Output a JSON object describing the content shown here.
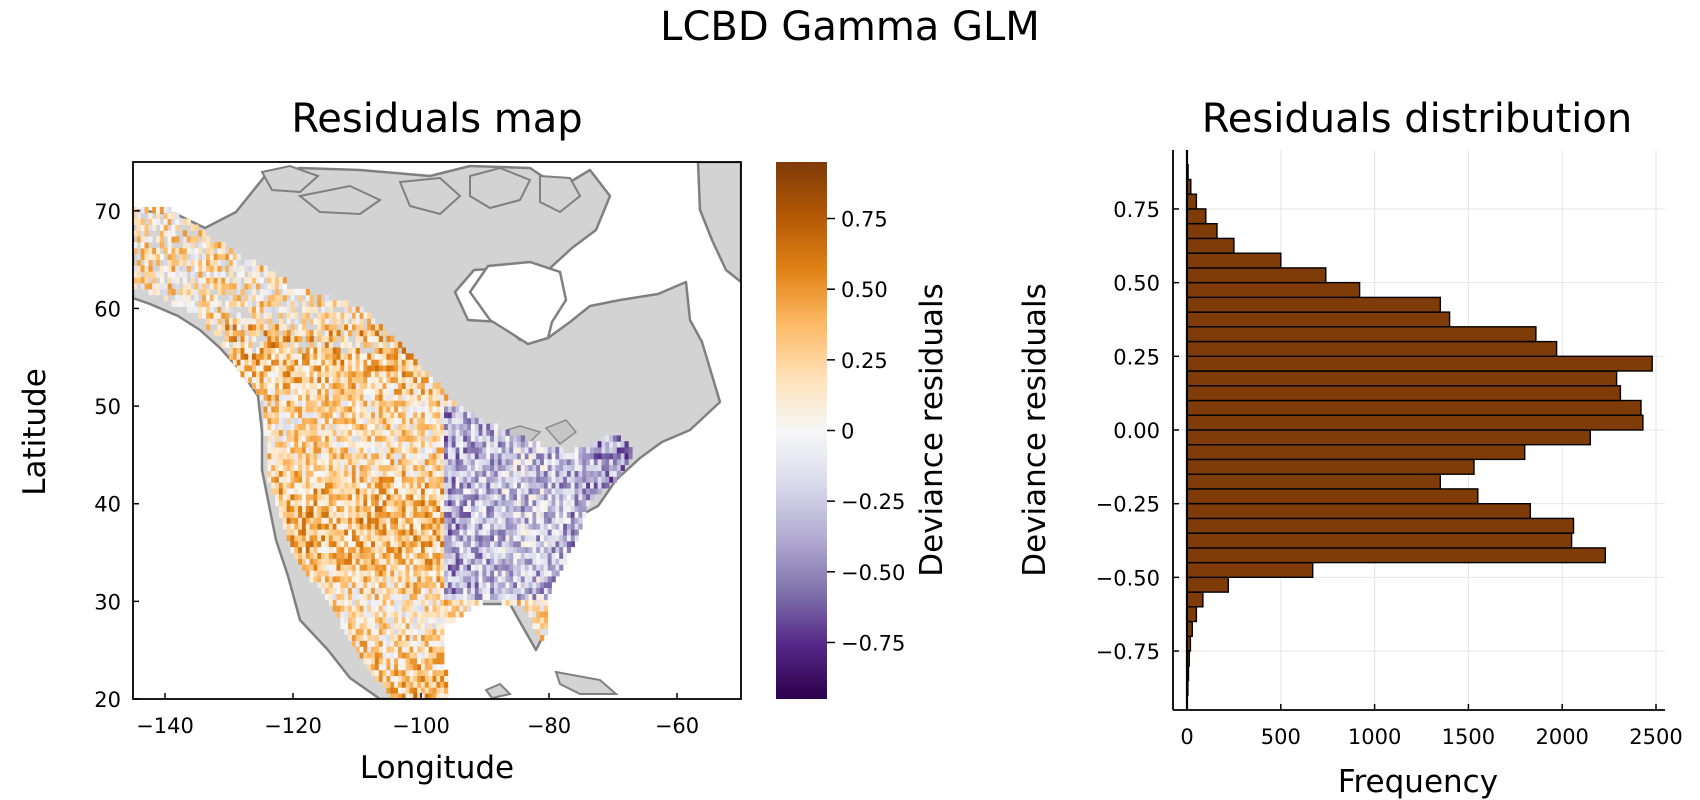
{
  "figure": {
    "title": "LCBD Gamma GLM"
  },
  "colors": {
    "land": "#d3d3d3",
    "coast": "#808080",
    "bar_fill": "#7f3b08",
    "grid": "#e6e6e6",
    "cmap": [
      "#2d004b",
      "#542788",
      "#8073ac",
      "#b2abd2",
      "#d8daeb",
      "#f7f7f7",
      "#fee0b6",
      "#fdb863",
      "#e08214",
      "#b35806",
      "#7f3b08"
    ]
  },
  "map": {
    "title": "Residuals map",
    "xlabel": "Longitude",
    "ylabel": "Latitude",
    "xticks": [
      -140,
      -120,
      -100,
      -80,
      -60
    ],
    "xtick_labels": [
      "−140",
      "−120",
      "−100",
      "−80",
      "−60"
    ],
    "yticks": [
      20,
      30,
      40,
      50,
      60,
      70
    ],
    "ytick_labels": [
      "20",
      "30",
      "40",
      "50",
      "60",
      "70"
    ],
    "xlim": [
      -145,
      -50
    ],
    "ylim": [
      20,
      75
    ],
    "colorbar": {
      "label": "Deviance residuals",
      "range": [
        -0.95,
        0.95
      ],
      "ticks": [
        -0.75,
        -0.5,
        -0.25,
        0,
        0.25,
        0.5,
        0.75
      ],
      "tick_labels": [
        "−0.75",
        "−0.50",
        "−0.25",
        "0",
        "0.25",
        "0.50",
        "0.75"
      ],
      "colormap": "PuOr (purple negative, orange positive)"
    }
  },
  "chart_data": {
    "type": "bar",
    "orientation": "horizontal",
    "title": "Residuals distribution",
    "xlabel": "Frequency",
    "ylabel": "Deviance residuals",
    "xlim": [
      0,
      2500
    ],
    "ylim": [
      -0.95,
      0.95
    ],
    "xticks": [
      0,
      500,
      1000,
      1500,
      2000,
      2500
    ],
    "xtick_labels": [
      "0",
      "500",
      "1000",
      "1500",
      "2000",
      "2500"
    ],
    "yticks": [
      -0.75,
      -0.5,
      -0.25,
      0,
      0.25,
      0.5,
      0.75
    ],
    "ytick_labels": [
      "−0.75",
      "−0.50",
      "−0.25",
      "0.00",
      "0.25",
      "0.50",
      "0.75"
    ],
    "bin_width": 0.05,
    "bin_starts": [
      -0.9,
      -0.85,
      -0.8,
      -0.75,
      -0.7,
      -0.65,
      -0.6,
      -0.55,
      -0.5,
      -0.45,
      -0.4,
      -0.35,
      -0.3,
      -0.25,
      -0.2,
      -0.15,
      -0.1,
      -0.05,
      0.0,
      0.05,
      0.1,
      0.15,
      0.2,
      0.25,
      0.3,
      0.35,
      0.4,
      0.45,
      0.5,
      0.55,
      0.6,
      0.65,
      0.7,
      0.75,
      0.8,
      0.85
    ],
    "values": [
      5,
      8,
      12,
      18,
      28,
      50,
      85,
      220,
      670,
      2230,
      2050,
      2060,
      1830,
      1550,
      1350,
      1530,
      1800,
      2150,
      2430,
      2420,
      2310,
      2290,
      2480,
      1970,
      1860,
      1400,
      1350,
      920,
      740,
      500,
      250,
      160,
      100,
      50,
      20,
      6
    ],
    "grid": true,
    "legend": "none"
  }
}
